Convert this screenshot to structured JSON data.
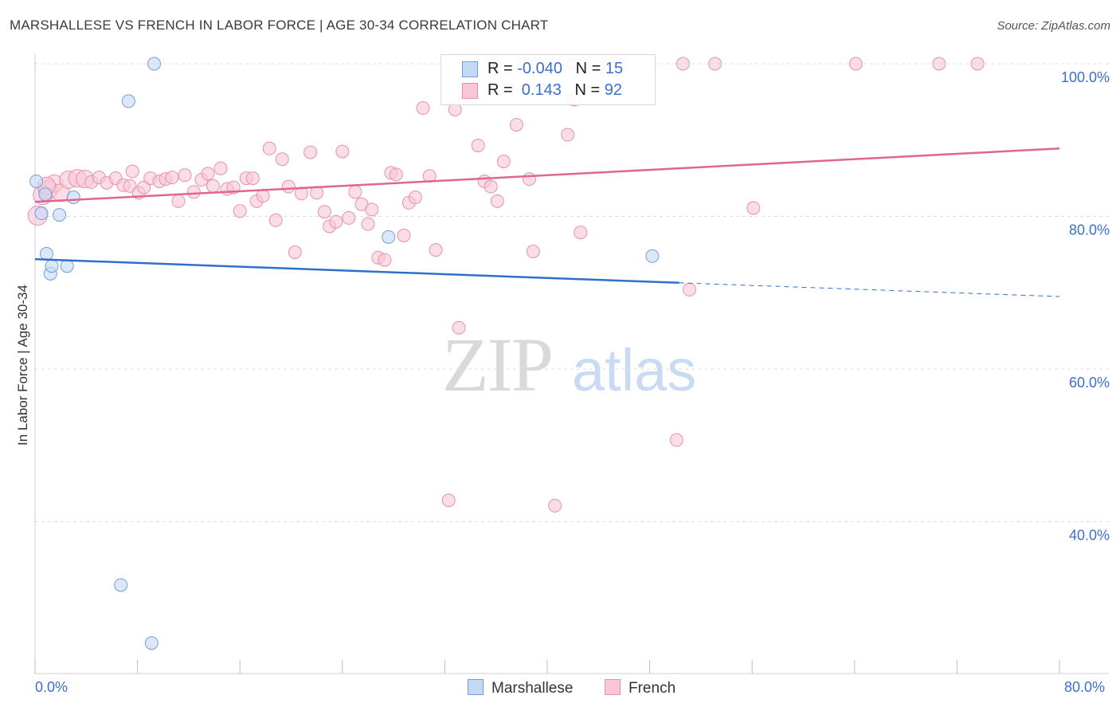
{
  "title": "MARSHALLESE VS FRENCH IN LABOR FORCE | AGE 30-34 CORRELATION CHART",
  "source": "Source: ZipAtlas.com",
  "watermark": {
    "zip": "ZIP",
    "atlas": "atlas"
  },
  "legend_top": {
    "rows": [
      {
        "r_label": "R = ",
        "r_value": "-0.040",
        "n_label": "N = ",
        "n_value": "15",
        "color": "#a9c8f3",
        "border": "#6f9edb"
      },
      {
        "r_label": "R = ",
        "r_value": " 0.143",
        "n_label": "N = ",
        "n_value": "92",
        "color": "#f7b9cb",
        "border": "#e47fa0"
      }
    ]
  },
  "legend_bottom": {
    "marshallese": "Marshallese",
    "french": "French"
  },
  "x_axis": {
    "min_label": "0.0%",
    "max_label": "80.0%"
  },
  "colors": {
    "marshallese_fill": "#c4d9f6",
    "marshallese_stroke": "#6f9edb",
    "marshallese_line": "#2f6fcc",
    "french_fill": "#f9c6d5",
    "french_stroke": "#e592ad",
    "french_line": "#e0668f",
    "axis_text": "#3b6fcf",
    "grid": "#dddddd"
  },
  "chart_data": {
    "type": "scatter",
    "title": "MARSHALLESE VS FRENCH IN LABOR FORCE | AGE 30-34 CORRELATION CHART",
    "xlabel": "",
    "ylabel": "In Labor Force | Age 30-34",
    "xlim": [
      0,
      80
    ],
    "ylim": [
      20,
      102
    ],
    "y_ticks": [
      40,
      60,
      80,
      100
    ],
    "y_tick_labels": [
      "40.0%",
      "60.0%",
      "80.0%",
      "100.0%"
    ],
    "grid": true,
    "legend_placement": "top-center",
    "series": [
      {
        "name": "Marshallese",
        "R": -0.04,
        "N": 15,
        "points": [
          [
            0.1,
            84.6
          ],
          [
            0.5,
            80.4
          ],
          [
            0.8,
            82.9
          ],
          [
            0.9,
            75.1
          ],
          [
            1.2,
            72.5
          ],
          [
            1.3,
            73.5
          ],
          [
            1.9,
            80.2
          ],
          [
            2.5,
            73.5
          ],
          [
            3.0,
            82.5
          ],
          [
            7.3,
            95.1
          ],
          [
            9.3,
            100.0
          ],
          [
            6.7,
            31.7
          ],
          [
            9.1,
            24.1
          ],
          [
            27.6,
            77.3
          ],
          [
            48.2,
            74.8
          ]
        ],
        "trend": {
          "x": [
            0,
            50.3
          ],
          "y": [
            74.4,
            71.3
          ],
          "dashed_to": [
            80,
            69.5
          ]
        }
      },
      {
        "name": "French",
        "R": 0.143,
        "N": 92,
        "points": [
          [
            0.2,
            80.1
          ],
          [
            0.6,
            82.8
          ],
          [
            1.0,
            83.5
          ],
          [
            1.5,
            84.3
          ],
          [
            2.0,
            83.1
          ],
          [
            2.6,
            84.8
          ],
          [
            3.3,
            85.0
          ],
          [
            3.9,
            84.9
          ],
          [
            4.4,
            84.5
          ],
          [
            5.0,
            85.1
          ],
          [
            5.6,
            84.4
          ],
          [
            6.3,
            85.0
          ],
          [
            6.9,
            84.1
          ],
          [
            7.4,
            84.0
          ],
          [
            7.6,
            85.9
          ],
          [
            8.1,
            83.1
          ],
          [
            8.5,
            83.8
          ],
          [
            9.0,
            85.0
          ],
          [
            9.7,
            84.6
          ],
          [
            10.2,
            84.9
          ],
          [
            10.7,
            85.1
          ],
          [
            11.2,
            82.0
          ],
          [
            11.7,
            85.4
          ],
          [
            12.4,
            83.2
          ],
          [
            13.0,
            84.8
          ],
          [
            13.5,
            85.6
          ],
          [
            13.9,
            84.0
          ],
          [
            14.5,
            86.3
          ],
          [
            15.0,
            83.6
          ],
          [
            15.5,
            83.8
          ],
          [
            16.0,
            80.7
          ],
          [
            16.5,
            85.0
          ],
          [
            17.0,
            85.0
          ],
          [
            17.3,
            82.0
          ],
          [
            17.8,
            82.7
          ],
          [
            18.3,
            88.9
          ],
          [
            18.8,
            79.5
          ],
          [
            19.3,
            87.5
          ],
          [
            19.8,
            83.9
          ],
          [
            20.3,
            75.3
          ],
          [
            20.8,
            83.0
          ],
          [
            21.5,
            88.4
          ],
          [
            22.0,
            83.1
          ],
          [
            22.6,
            80.6
          ],
          [
            23.0,
            78.7
          ],
          [
            23.5,
            79.3
          ],
          [
            24.0,
            88.5
          ],
          [
            24.5,
            79.8
          ],
          [
            25.0,
            83.2
          ],
          [
            25.5,
            81.6
          ],
          [
            26.0,
            79.0
          ],
          [
            26.3,
            80.9
          ],
          [
            26.8,
            74.6
          ],
          [
            27.3,
            74.3
          ],
          [
            27.8,
            85.7
          ],
          [
            28.2,
            85.5
          ],
          [
            28.8,
            77.5
          ],
          [
            29.2,
            81.8
          ],
          [
            29.7,
            82.5
          ],
          [
            30.3,
            94.2
          ],
          [
            30.8,
            85.3
          ],
          [
            31.3,
            75.6
          ],
          [
            32.3,
            42.8
          ],
          [
            32.8,
            94.0
          ],
          [
            33.1,
            65.4
          ],
          [
            34.1,
            95.6
          ],
          [
            34.6,
            89.3
          ],
          [
            35.1,
            84.6
          ],
          [
            35.6,
            83.9
          ],
          [
            36.1,
            82.0
          ],
          [
            36.6,
            87.2
          ],
          [
            37.6,
            92.0
          ],
          [
            38.6,
            84.9
          ],
          [
            38.9,
            75.4
          ],
          [
            40.6,
            42.1
          ],
          [
            41.6,
            90.7
          ],
          [
            42.1,
            95.3
          ],
          [
            42.6,
            77.9
          ],
          [
            45.6,
            100.0
          ],
          [
            50.1,
            50.7
          ],
          [
            50.6,
            100.0
          ],
          [
            51.1,
            70.4
          ],
          [
            53.1,
            100.0
          ],
          [
            56.1,
            81.1
          ],
          [
            64.1,
            100.0
          ],
          [
            70.6,
            100.0
          ],
          [
            73.6,
            100.0
          ],
          [
            38.1,
            100.0
          ],
          [
            42.1,
            100.0
          ],
          [
            35.9,
            100.0
          ],
          [
            44.2,
            100.0
          ],
          [
            0.9,
            84.0
          ]
        ],
        "trend": {
          "x": [
            0,
            80
          ],
          "y": [
            81.9,
            88.9
          ]
        }
      }
    ]
  }
}
